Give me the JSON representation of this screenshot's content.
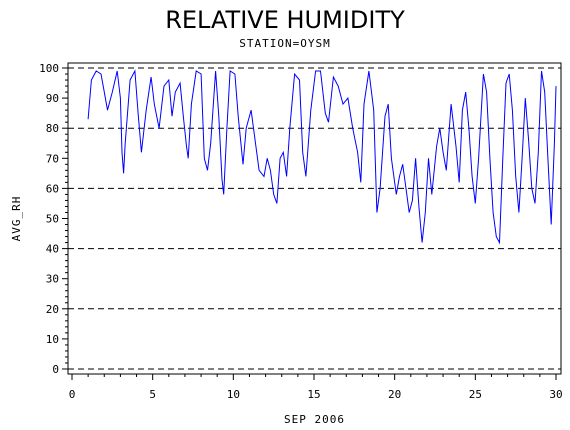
{
  "chart_data": {
    "type": "line",
    "title": "RELATIVE HUMIDITY",
    "subtitle": "STATION=OYSM",
    "xlabel": "SEP 2006",
    "ylabel": "AVG_RH",
    "xlim": [
      0,
      30
    ],
    "ylim": [
      0,
      100
    ],
    "x_ticks": [
      0,
      5,
      10,
      15,
      20,
      25,
      30
    ],
    "y_ticks": [
      0,
      10,
      20,
      30,
      40,
      50,
      60,
      70,
      80,
      90,
      100
    ],
    "reference_lines": [
      0,
      20,
      40,
      60,
      80,
      100
    ],
    "grid": "dashed horizontal reference lines",
    "series": [
      {
        "color": "#0000ff",
        "points": [
          [
            1.0,
            83
          ],
          [
            1.2,
            96
          ],
          [
            1.5,
            99
          ],
          [
            1.8,
            98
          ],
          [
            2.0,
            92
          ],
          [
            2.2,
            86
          ],
          [
            2.5,
            92
          ],
          [
            2.8,
            99
          ],
          [
            3.0,
            90
          ],
          [
            3.1,
            72
          ],
          [
            3.2,
            65
          ],
          [
            3.3,
            75
          ],
          [
            3.6,
            96
          ],
          [
            3.9,
            99
          ],
          [
            4.1,
            85
          ],
          [
            4.3,
            72
          ],
          [
            4.6,
            86
          ],
          [
            4.9,
            97
          ],
          [
            5.1,
            88
          ],
          [
            5.4,
            80
          ],
          [
            5.7,
            94
          ],
          [
            6.0,
            96
          ],
          [
            6.2,
            84
          ],
          [
            6.4,
            92
          ],
          [
            6.7,
            95
          ],
          [
            6.9,
            84
          ],
          [
            7.1,
            74
          ],
          [
            7.2,
            70
          ],
          [
            7.4,
            88
          ],
          [
            7.7,
            99
          ],
          [
            8.0,
            98
          ],
          [
            8.2,
            70
          ],
          [
            8.4,
            66
          ],
          [
            8.6,
            75
          ],
          [
            8.9,
            99
          ],
          [
            9.1,
            84
          ],
          [
            9.3,
            63
          ],
          [
            9.4,
            58
          ],
          [
            9.6,
            80
          ],
          [
            9.8,
            99
          ],
          [
            10.1,
            98
          ],
          [
            10.3,
            84
          ],
          [
            10.6,
            68
          ],
          [
            10.8,
            80
          ],
          [
            11.1,
            86
          ],
          [
            11.4,
            74
          ],
          [
            11.6,
            66
          ],
          [
            11.9,
            64
          ],
          [
            12.1,
            70
          ],
          [
            12.3,
            66
          ],
          [
            12.5,
            58
          ],
          [
            12.7,
            55
          ],
          [
            12.9,
            70
          ],
          [
            13.1,
            72
          ],
          [
            13.3,
            64
          ],
          [
            13.5,
            80
          ],
          [
            13.8,
            98
          ],
          [
            14.1,
            96
          ],
          [
            14.3,
            72
          ],
          [
            14.5,
            64
          ],
          [
            14.8,
            86
          ],
          [
            15.1,
            99
          ],
          [
            15.4,
            99
          ],
          [
            15.7,
            85
          ],
          [
            15.9,
            82
          ],
          [
            16.2,
            97
          ],
          [
            16.5,
            94
          ],
          [
            16.8,
            88
          ],
          [
            17.1,
            90
          ],
          [
            17.4,
            80
          ],
          [
            17.7,
            72
          ],
          [
            17.9,
            62
          ],
          [
            18.1,
            88
          ],
          [
            18.4,
            99
          ],
          [
            18.7,
            86
          ],
          [
            18.9,
            52
          ],
          [
            19.1,
            60
          ],
          [
            19.4,
            84
          ],
          [
            19.6,
            88
          ],
          [
            19.8,
            70
          ],
          [
            20.1,
            58
          ],
          [
            20.3,
            64
          ],
          [
            20.5,
            68
          ],
          [
            20.7,
            60
          ],
          [
            20.9,
            52
          ],
          [
            21.1,
            56
          ],
          [
            21.3,
            70
          ],
          [
            21.5,
            54
          ],
          [
            21.7,
            42
          ],
          [
            21.9,
            52
          ],
          [
            22.1,
            70
          ],
          [
            22.3,
            58
          ],
          [
            22.6,
            74
          ],
          [
            22.8,
            80
          ],
          [
            23.0,
            72
          ],
          [
            23.2,
            66
          ],
          [
            23.5,
            88
          ],
          [
            23.8,
            74
          ],
          [
            24.0,
            62
          ],
          [
            24.2,
            86
          ],
          [
            24.4,
            92
          ],
          [
            24.6,
            80
          ],
          [
            24.8,
            64
          ],
          [
            25.0,
            55
          ],
          [
            25.2,
            70
          ],
          [
            25.5,
            98
          ],
          [
            25.7,
            92
          ],
          [
            25.9,
            70
          ],
          [
            26.1,
            52
          ],
          [
            26.3,
            44
          ],
          [
            26.5,
            42
          ],
          [
            26.7,
            70
          ],
          [
            26.9,
            95
          ],
          [
            27.1,
            98
          ],
          [
            27.3,
            86
          ],
          [
            27.5,
            64
          ],
          [
            27.7,
            52
          ],
          [
            27.9,
            70
          ],
          [
            28.1,
            90
          ],
          [
            28.3,
            76
          ],
          [
            28.5,
            60
          ],
          [
            28.7,
            55
          ],
          [
            28.9,
            72
          ],
          [
            29.1,
            99
          ],
          [
            29.3,
            92
          ],
          [
            29.5,
            70
          ],
          [
            29.7,
            48
          ],
          [
            29.9,
            75
          ],
          [
            30.0,
            94
          ]
        ]
      }
    ]
  }
}
